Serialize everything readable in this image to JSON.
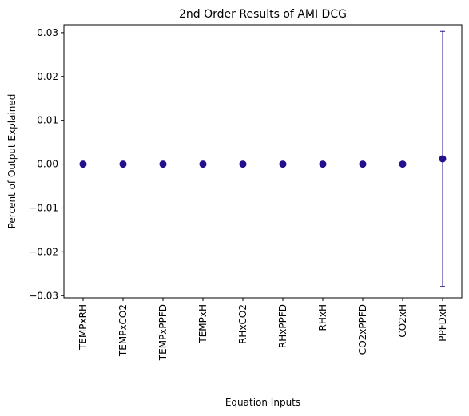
{
  "chart_data": {
    "type": "scatter",
    "title": "2nd Order Results of AMI DCG",
    "xlabel": "Equation Inputs",
    "ylabel": "Percent of Output Explained",
    "categories": [
      "TEMPxRH",
      "TEMPxCO2",
      "TEMPxPPFD",
      "TEMPxH",
      "RHxCO2",
      "RHxPPFD",
      "RHxH",
      "CO2xPPFD",
      "CO2xH",
      "PPFDxH"
    ],
    "values": [
      0.0,
      0.0,
      0.0,
      0.0,
      0.0,
      0.0,
      0.0,
      0.0,
      0.0,
      0.0012
    ],
    "error_low": [
      null,
      null,
      null,
      null,
      null,
      null,
      null,
      null,
      null,
      -0.0279
    ],
    "error_high": [
      null,
      null,
      null,
      null,
      null,
      null,
      null,
      null,
      null,
      0.0303
    ],
    "ylim": [
      -0.0305,
      0.0318
    ],
    "yticks": [
      -0.03,
      -0.02,
      -0.01,
      0.0,
      0.01,
      0.02,
      0.03
    ],
    "ytick_labels": [
      "−0.03",
      "−0.02",
      "−0.01",
      "0.00",
      "0.01",
      "0.02",
      "0.03"
    ],
    "grid": false,
    "marker_color": "#23108c",
    "errorbar_color": "#23108c"
  }
}
